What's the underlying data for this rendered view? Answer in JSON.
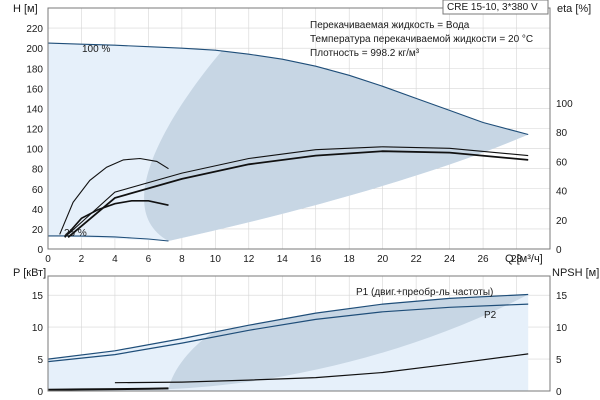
{
  "header": {
    "model": "CRE 15-10, 3*380 V",
    "info": [
      "Перекачиваемая жидкость = Вода",
      "Температура перекачиваемой жидкости = 20 °C",
      "Плотность = 998.2 кг/м³"
    ]
  },
  "colors": {
    "curve": "#1f4e79",
    "fill": "#c7d6e4",
    "fill_light": "#e6f0fa",
    "black": "#111111",
    "grid": "#d6d6d6"
  },
  "chart_data": [
    {
      "type": "line",
      "title": "",
      "xlabel": "Q [м³/ч]",
      "ylabel": "H [м]",
      "y2label": "eta [%]",
      "ylim": [
        0,
        240
      ],
      "y2lim": [
        0,
        100
      ],
      "xlim": [
        0,
        30
      ],
      "x_ticks": [
        0,
        2,
        4,
        6,
        8,
        10,
        12,
        14,
        16,
        18,
        20,
        22,
        24,
        26,
        28
      ],
      "y_ticks": [
        0,
        20,
        40,
        60,
        80,
        100,
        120,
        140,
        160,
        180,
        200,
        220
      ],
      "y2_ticks": [
        0,
        20,
        40,
        60,
        80,
        100
      ],
      "grid": true,
      "annotations": [
        "100 %",
        "25 %"
      ],
      "series": [
        {
          "name": "100 %",
          "axis": "H",
          "x": [
            0,
            2,
            4,
            6,
            8,
            10,
            12,
            14,
            16,
            18,
            20,
            22,
            24,
            26,
            28.7
          ],
          "y": [
            205,
            204,
            203,
            201.5,
            200,
            198,
            194,
            189,
            182,
            173,
            162,
            150,
            138,
            126,
            114
          ]
        },
        {
          "name": "25 %",
          "axis": "H",
          "x": [
            0,
            1,
            2,
            3,
            4,
            5,
            6,
            7.2
          ],
          "y": [
            13,
            13,
            12.8,
            12.5,
            12,
            11,
            10,
            8
          ]
        },
        {
          "axis": "eta",
          "x": [
            1.2,
            4,
            8,
            12,
            16,
            20,
            24,
            28.7
          ],
          "y": [
            8,
            35,
            48,
            58,
            64,
            67,
            66,
            61
          ]
        },
        {
          "axis": "eta",
          "x": [
            1.2,
            4,
            8,
            12,
            16,
            20,
            24,
            28.7
          ],
          "y": [
            10,
            39,
            52,
            62,
            68,
            70,
            69,
            64
          ]
        },
        {
          "axis": "eta",
          "x": [
            1,
            2,
            3,
            4,
            5,
            6,
            7.2
          ],
          "y": [
            8,
            21,
            27,
            31,
            33,
            33,
            30
          ]
        },
        {
          "axis": "eta",
          "x": [
            0.7,
            1.5,
            2.5,
            3.5,
            4.5,
            5.5,
            6.5,
            7.2
          ],
          "y": [
            10,
            32,
            47,
            56,
            61,
            62,
            60,
            55
          ]
        }
      ]
    },
    {
      "type": "line",
      "title": "",
      "xlabel": "",
      "ylabel": "P [кВт]",
      "y2label": "NPSH [м]",
      "ylim": [
        0,
        18
      ],
      "y2lim": [
        0,
        18
      ],
      "xlim": [
        0,
        30
      ],
      "y_ticks": [
        0,
        5,
        10,
        15
      ],
      "y2_ticks": [
        0,
        5,
        10,
        15
      ],
      "grid": true,
      "series": [
        {
          "name": "P1 (двиг.+преобр-ль частоты)",
          "axis": "P",
          "x": [
            0,
            4,
            8,
            12,
            16,
            20,
            24,
            28.7
          ],
          "y": [
            5,
            6.3,
            8.2,
            10.3,
            12.2,
            13.6,
            14.5,
            15.1
          ]
        },
        {
          "name": "P2",
          "axis": "P",
          "x": [
            0,
            4,
            8,
            12,
            16,
            20,
            24,
            28.7
          ],
          "y": [
            4.6,
            5.7,
            7.5,
            9.5,
            11.2,
            12.4,
            13.1,
            13.6
          ]
        },
        {
          "axis": "NPSH",
          "x": [
            4,
            8,
            12,
            16,
            20,
            24,
            28.7
          ],
          "y": [
            1.3,
            1.4,
            1.7,
            2.1,
            2.9,
            4.2,
            5.8
          ]
        },
        {
          "axis": "P",
          "x": [
            0,
            2,
            4,
            6,
            7.2
          ],
          "y": [
            0.2,
            0.25,
            0.3,
            0.35,
            0.4
          ]
        }
      ]
    }
  ]
}
